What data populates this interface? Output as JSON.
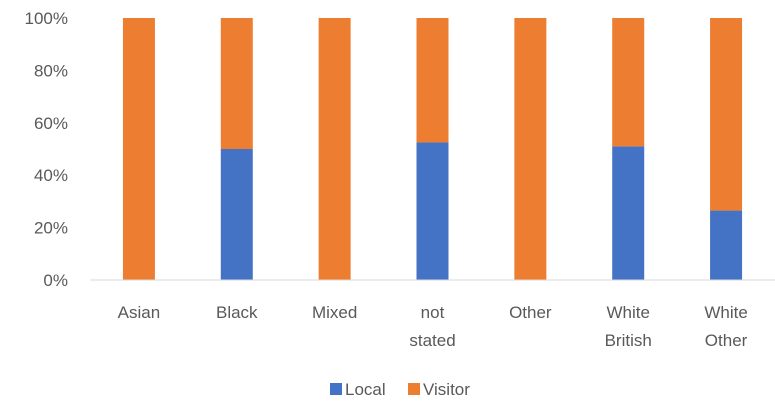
{
  "chart_data": {
    "type": "bar",
    "stacked": "percent",
    "categories": [
      [
        "Asian"
      ],
      [
        "Black"
      ],
      [
        "Mixed"
      ],
      [
        "not",
        "stated"
      ],
      [
        "Other"
      ],
      [
        "White",
        "British"
      ],
      [
        "White",
        "Other"
      ]
    ],
    "series": [
      {
        "name": "Local",
        "color": "#4472C4",
        "values": [
          0,
          50,
          0,
          52.5,
          0,
          51,
          26.5
        ]
      },
      {
        "name": "Visitor",
        "color": "#ED7D31",
        "values": [
          100,
          50,
          100,
          47.5,
          100,
          49,
          73.5
        ]
      }
    ],
    "y_ticks": [
      "0%",
      "20%",
      "40%",
      "60%",
      "80%",
      "100%"
    ],
    "ylim": [
      0,
      100
    ],
    "grid": false,
    "legend": "bottom-center"
  }
}
